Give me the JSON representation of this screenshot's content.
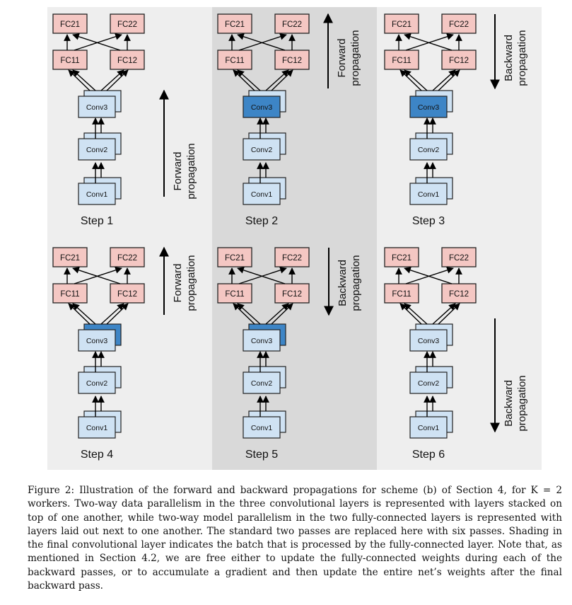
{
  "figure": {
    "nodes": {
      "fc21": "FC21",
      "fc22": "FC22",
      "fc11": "FC11",
      "fc12": "FC12",
      "conv3": "Conv3",
      "conv2": "Conv2",
      "conv1": "Conv1"
    },
    "colors": {
      "fc_fill": "#f4c7c3",
      "conv_light": "#cfe2f3",
      "conv_dark": "#3d85c6",
      "panel_light": "#eeeeee",
      "panel_dark": "#d9d9d9"
    },
    "steps": [
      {
        "label": "Step 1",
        "arrow_label": [
          "Forward",
          "propagation"
        ],
        "direction": "up"
      },
      {
        "label": "Step 2",
        "arrow_label": [
          "Forward",
          "propagation"
        ],
        "direction": "up"
      },
      {
        "label": "Step 3",
        "arrow_label": [
          "Backward",
          "propagation"
        ],
        "direction": "down"
      },
      {
        "label": "Step 4",
        "arrow_label": [
          "Forward",
          "propagation"
        ],
        "direction": "up"
      },
      {
        "label": "Step 5",
        "arrow_label": [
          "Backward",
          "propagation"
        ],
        "direction": "down"
      },
      {
        "label": "Step 6",
        "arrow_label": [
          "Backward",
          "propagation"
        ],
        "direction": "down"
      }
    ]
  },
  "caption": {
    "text": "Figure 2: Illustration of the forward and backward propagations for scheme (b) of Section 4, for K = 2 workers. Two-way data parallelism in the three convolutional layers is represented with layers stacked on top of one another, while two-way model parallelism in the two fully-connected layers is represented with layers laid out next to one another. The standard two passes are replaced here with six passes. Shading in the final convolutional layer indicates the batch that is processed by the fully-connected layer. Note that, as mentioned in Section 4.2, we are free either to update the fully-connected weights during each of the backward passes, or to accumulate a gradient and then update the entire net’s weights after the final backward pass."
  }
}
